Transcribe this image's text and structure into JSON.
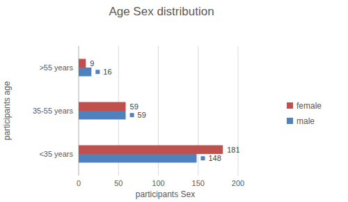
{
  "chart_data": {
    "type": "bar",
    "orientation": "horizontal",
    "title": "Age Sex distribution",
    "xlabel": "participants Sex",
    "ylabel": "participants age",
    "categories": [
      "<35 years",
      "35-55 years",
      ">55 years"
    ],
    "series": [
      {
        "name": "female",
        "color": "#c0504d",
        "values": [
          181,
          59,
          9
        ]
      },
      {
        "name": "male",
        "color": "#4f81bd",
        "values": [
          148,
          59,
          16
        ]
      }
    ],
    "xlim": [
      0,
      200
    ],
    "xticks": [
      0,
      50,
      100,
      150,
      200
    ],
    "grid": true,
    "legend": "right",
    "data_labels": true
  }
}
